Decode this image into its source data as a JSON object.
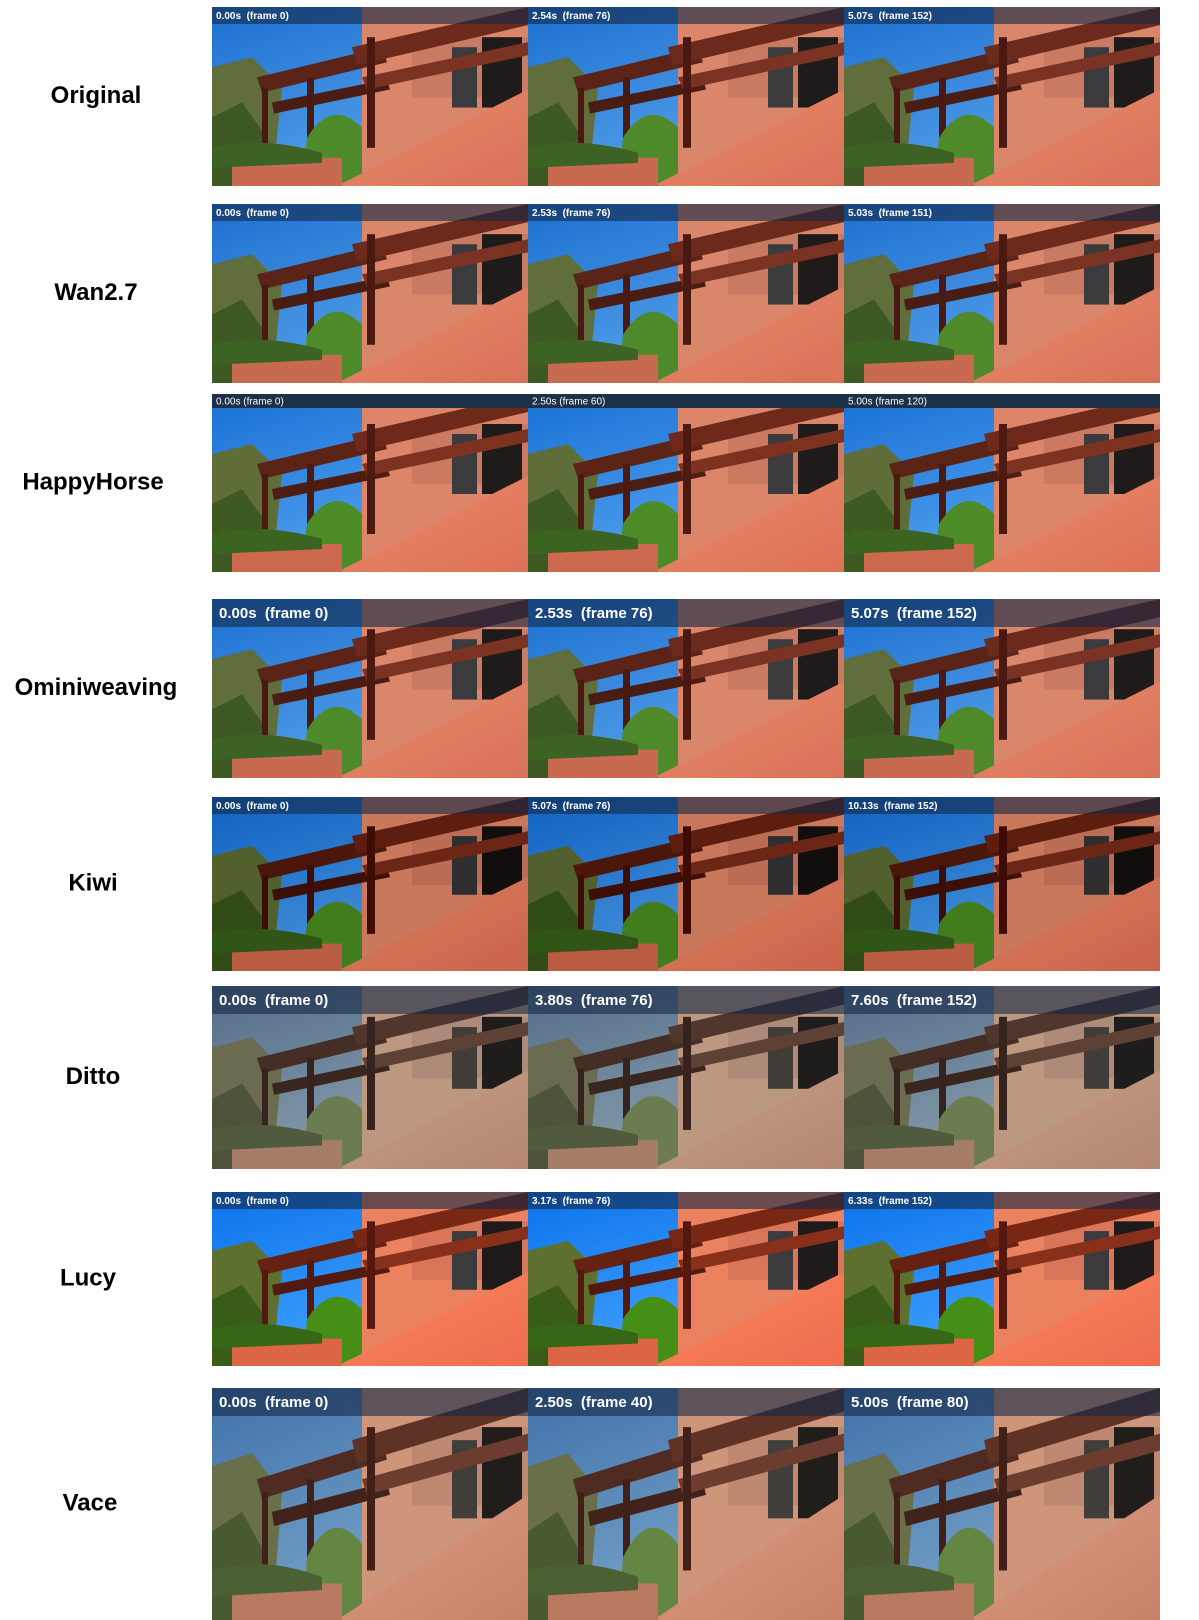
{
  "rows": [
    {
      "label": "Original",
      "frames": [
        "0.00s  (frame 0)",
        "2.54s  (frame 76)",
        "5.07s  (frame 152)"
      ]
    },
    {
      "label": "Wan2.7",
      "frames": [
        "0.00s  (frame 0)",
        "2.53s  (frame 76)",
        "5.03s  (frame 151)"
      ]
    },
    {
      "label": "HappyHorse",
      "frames": [
        "0.00s (frame 0)",
        "2.50s (frame 60)",
        "5.00s (frame 120)"
      ]
    },
    {
      "label": "Ominiweaving",
      "frames": [
        "0.00s  (frame 0)",
        "2.53s  (frame 76)",
        "5.07s  (frame 152)"
      ]
    },
    {
      "label": "Kiwi",
      "frames": [
        "0.00s  (frame 0)",
        "5.07s  (frame 76)",
        "10.13s  (frame 152)"
      ]
    },
    {
      "label": "Ditto",
      "frames": [
        "0.00s  (frame 0)",
        "3.80s  (frame 76)",
        "7.60s  (frame 152)"
      ]
    },
    {
      "label": "Lucy",
      "frames": [
        "0.00s  (frame 0)",
        "3.17s  (frame 76)",
        "6.33s  (frame 152)"
      ]
    },
    {
      "label": "Vace",
      "frames": [
        "0.00s  (frame 0)",
        "2.50s  (frame 40)",
        "5.00s  (frame 80)"
      ]
    }
  ]
}
